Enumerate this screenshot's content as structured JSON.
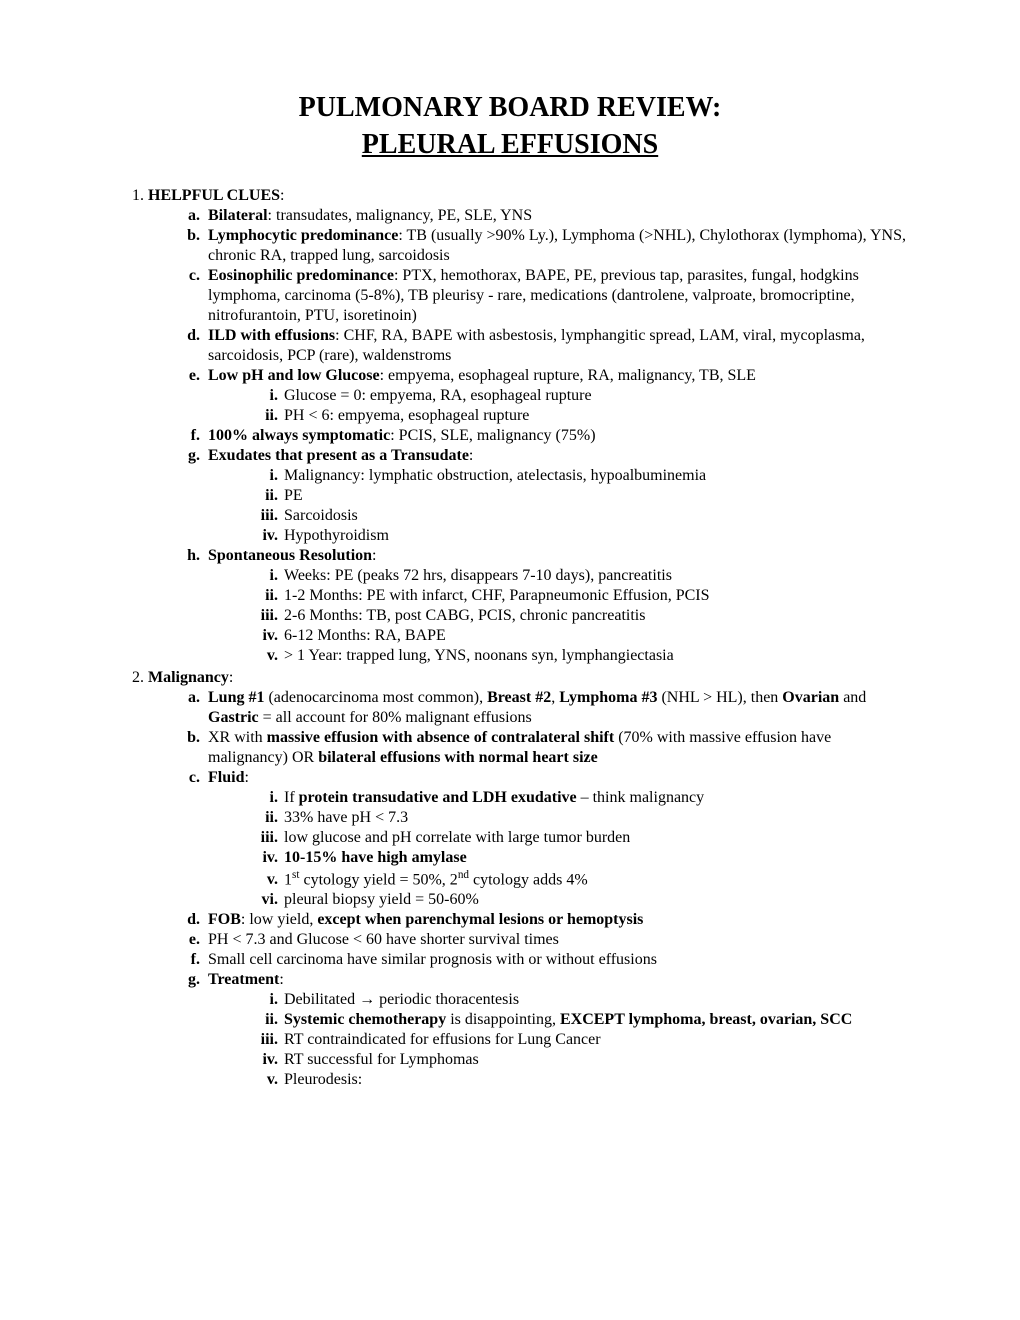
{
  "title_line1": "PULMONARY BOARD REVIEW:",
  "title_line2": "PLEURAL EFFUSIONS",
  "sections": {
    "s1": {
      "heading": "HELPFUL CLUES",
      "a": {
        "label": "Bilateral",
        "rest": ": transudates, malignancy, PE, SLE, YNS"
      },
      "b": {
        "label": "Lymphocytic predominance",
        "rest": ": TB (usually >90% Ly.), Lymphoma (>NHL), Chylothorax (lymphoma), YNS, chronic RA, trapped lung, sarcoidosis"
      },
      "c": {
        "label": "Eosinophilic predominance",
        "rest": ": PTX, hemothorax, BAPE, PE, previous tap, parasites, fungal, hodgkins lymphoma, carcinoma (5-8%), TB pleurisy - rare, medications (dantrolene, valproate, bromocriptine, nitrofurantoin, PTU, isoretinoin)"
      },
      "d": {
        "label": "ILD with effusions",
        "rest": ": CHF, RA, BAPE with asbestosis, lymphangitic spread, LAM, viral, mycoplasma, sarcoidosis, PCP (rare), waldenstroms"
      },
      "e": {
        "label": "Low pH and low Glucose",
        "rest": ": empyema, esophageal rupture, RA, malignancy, TB, SLE",
        "i": "Glucose = 0: empyema, RA, esophageal rupture",
        "ii": "PH < 6: empyema, esophageal rupture"
      },
      "f": {
        "label": "100% always symptomatic",
        "rest": ": PCIS, SLE, malignancy (75%)"
      },
      "g": {
        "label": "Exudates that present as a Transudate",
        "rest": ":",
        "i": "Malignancy: lymphatic obstruction, atelectasis, hypoalbuminemia",
        "ii": "PE",
        "iii": "Sarcoidosis",
        "iv": "Hypothyroidism"
      },
      "h": {
        "label": "Spontaneous Resolution",
        "rest": ":",
        "i": "Weeks: PE (peaks 72 hrs, disappears 7-10 days), pancreatitis",
        "ii": "1-2 Months: PE with infarct, CHF, Parapneumonic Effusion, PCIS",
        "iii": "2-6 Months: TB, post CABG, PCIS, chronic pancreatitis",
        "iv": "6-12 Months: RA, BAPE",
        "v": "> 1 Year: trapped lung, YNS, noonans syn, lymphangiectasia"
      }
    },
    "s2": {
      "heading": "Malignancy",
      "a": {
        "p1": "Lung #1",
        "t1": " (adenocarcinoma most common), ",
        "p2": "Breast #2",
        "t2": ", ",
        "p3": "Lymphoma #3",
        "t3": " (NHL > HL), then ",
        "p4": "Ovarian",
        "t4": " and ",
        "p5": "Gastric",
        "t5": " = all account for 80% malignant effusions"
      },
      "b": {
        "t1": "XR with ",
        "p1": "massive effusion with absence of contralateral shift",
        "t2": " (70% with massive effusion have malignancy) OR ",
        "p2": "bilateral effusions with normal heart size"
      },
      "c": {
        "label": "Fluid",
        "rest": ":",
        "i": {
          "t1": "If ",
          "p1": "protein transudative and LDH exudative",
          "t2": " – think malignancy"
        },
        "ii": "33% have pH < 7.3",
        "iii": "low glucose and pH correlate with large tumor burden",
        "iv": "10-15% have high amylase",
        "v": {
          "t1": "1",
          "sup1": "st",
          "t2": " cytology yield = 50%, 2",
          "sup2": "nd",
          "t3": " cytology adds 4%"
        },
        "vi": "pleural biopsy yield = 50-60%"
      },
      "d": {
        "label": "FOB",
        "t1": ": low yield, ",
        "p1": "except when parenchymal lesions or hemoptysis"
      },
      "e": "PH < 7.3 and Glucose < 60 have shorter survival times",
      "f": "Small cell carcinoma have similar prognosis with or without effusions",
      "g": {
        "label": "Treatment",
        "rest": ":",
        "i": {
          "t1": "Debilitated ",
          "arrow": "→",
          "t2": " periodic thoracentesis"
        },
        "ii": {
          "p1": "Systemic chemotherapy",
          "t1": " is disappointing, ",
          "p2": "EXCEPT lymphoma, breast, ovarian, SCC"
        },
        "iii": "RT contraindicated for effusions for Lung Cancer",
        "iv": "RT successful for Lymphomas",
        "v": "Pleurodesis:"
      }
    }
  }
}
